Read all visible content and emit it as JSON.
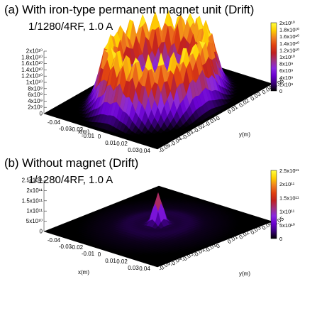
{
  "chart_data": [
    {
      "type": "surface3d",
      "panel": "(a)",
      "title": "(a) With iron-type permanent magnet unit (Drift)",
      "subtitle": "1/1280/4RF, 1.0 A",
      "xlabel": "x(m)",
      "ylabel": "y(m)",
      "xlim": [
        -0.05,
        0.05
      ],
      "ylim": [
        -0.05,
        0.05
      ],
      "zlim": [
        0,
        20000000000.0
      ],
      "x_ticks": [
        "-0.04",
        "-0.03",
        "-0.02",
        "-0.01",
        "0",
        "0.01",
        "0.02",
        "0.03",
        "0.04",
        "0.05"
      ],
      "y_ticks": [
        "-0.05",
        "-0.04",
        "-0.03",
        "-0.02",
        "-0.01",
        "0",
        "0.01",
        "0.02",
        "0.03",
        "0.04",
        "0.05"
      ],
      "z_ticks": [
        "0",
        "2x10⁹",
        "4x10⁹",
        "6x10⁹",
        "8x10⁹",
        "1x10¹⁰",
        "1.2x10¹⁰",
        "1.4x10¹⁰",
        "1.6x10¹⁰",
        "1.8x10¹⁰",
        "2x10¹⁰"
      ],
      "colorbar_ticks": [
        "2x10¹⁰",
        "1.8x10¹⁰",
        "1.6x10¹⁰",
        "1.4x10¹⁰",
        "1.2x10¹⁰",
        "1x10¹⁰",
        "8x10⁹",
        "6x10⁹",
        "4x10⁹",
        "2x10⁹",
        "0"
      ],
      "profile": "annular",
      "ring_radius": 0.03,
      "peak": 18000000000.0,
      "center_value": 9000000000.0
    },
    {
      "type": "surface3d",
      "panel": "(b)",
      "title": "(b) Without magnet (Drift)",
      "subtitle": "1/1280/4RF, 1.0 A",
      "xlabel": "x(m)",
      "ylabel": "y(m)",
      "xlim": [
        -0.05,
        0.05
      ],
      "ylim": [
        -0.05,
        0.05
      ],
      "zlim": [
        0,
        250000000000.0
      ],
      "x_ticks": [
        "-0.04",
        "-0.03",
        "-0.02",
        "-0.01",
        "0",
        "0.01",
        "0.02",
        "0.03",
        "0.04"
      ],
      "y_ticks": [
        "-0.05",
        "-0.04",
        "-0.03",
        "-0.02",
        "-0.01",
        "0",
        "0.01",
        "0.02",
        "0.03",
        "0.04",
        "0.05"
      ],
      "z_ticks": [
        "0",
        "5x10¹⁰",
        "1x10¹¹",
        "1.5x10¹¹",
        "2x10¹¹",
        "2.5x10¹¹"
      ],
      "colorbar_ticks": [
        "2.5x10¹¹",
        "2x10¹¹",
        "1.5x10¹¹",
        "1x10¹¹",
        "5x10¹⁰",
        "0"
      ],
      "profile": "central-peak",
      "peak": 150000000000.0,
      "background": 15000000000.0
    }
  ],
  "colormap": [
    "#000000",
    "#3a007a",
    "#6a00d0",
    "#8a28e0",
    "#a03080",
    "#c02020",
    "#e04010",
    "#f08020",
    "#ffd000",
    "#ffff40"
  ]
}
